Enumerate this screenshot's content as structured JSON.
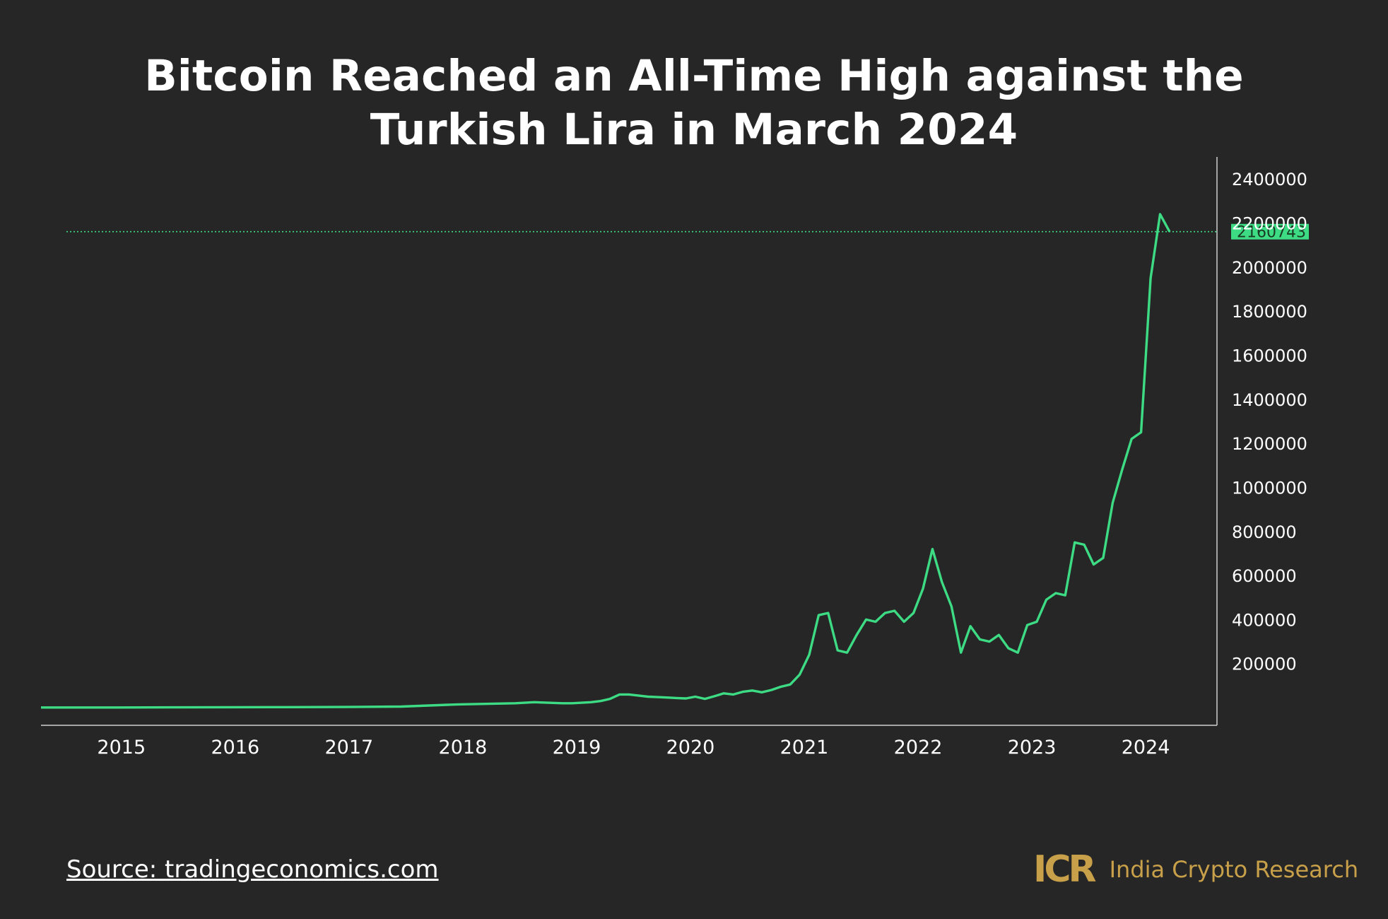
{
  "title_line1": "Bitcoin Reached an All-Time High against the",
  "title_line2": "Turkish Lira in March 2024",
  "source": "Source: tradingeconomics.com",
  "brand": {
    "logo_text": "ICR",
    "name": "India Crypto Research"
  },
  "colors": {
    "background": "#262626",
    "line": "#3ddc84",
    "text": "#ffffff",
    "brand": "#c8a049",
    "axis": "#cfcfcf"
  },
  "chart_data": {
    "type": "line",
    "title": "Bitcoin Reached an All-Time High against the Turkish Lira in March 2024",
    "xlabel": "",
    "ylabel": "",
    "x_ticks": [
      "2015",
      "2016",
      "2017",
      "2018",
      "2019",
      "2020",
      "2021",
      "2022",
      "2023",
      "2024"
    ],
    "y_ticks": [
      200000,
      400000,
      600000,
      800000,
      1000000,
      1200000,
      1400000,
      1600000,
      1800000,
      2000000,
      2200000,
      2400000
    ],
    "xlim": [
      "2014-05",
      "2024-09"
    ],
    "ylim": [
      -80000,
      2500000
    ],
    "y_axis_side": "right",
    "grid": false,
    "last_value": 2160743,
    "last_value_label": "2160743",
    "reference_line": {
      "value": 2160743,
      "style": "dotted"
    },
    "series": [
      {
        "points": [
          [
            "2014-05",
            1000
          ],
          [
            "2014-09",
            1000
          ],
          [
            "2015-01",
            1000
          ],
          [
            "2015-07",
            1500
          ],
          [
            "2016-01",
            2000
          ],
          [
            "2016-07",
            2500
          ],
          [
            "2017-01",
            3000
          ],
          [
            "2017-07",
            5000
          ],
          [
            "2018-01",
            15000
          ],
          [
            "2018-07",
            20000
          ],
          [
            "2018-09",
            25000
          ],
          [
            "2018-12",
            20000
          ],
          [
            "2019-01",
            20000
          ],
          [
            "2019-03",
            25000
          ],
          [
            "2019-04",
            30000
          ],
          [
            "2019-05",
            40000
          ],
          [
            "2019-06",
            60000
          ],
          [
            "2019-07",
            60000
          ],
          [
            "2019-08",
            55000
          ],
          [
            "2019-09",
            50000
          ],
          [
            "2019-10",
            48000
          ],
          [
            "2019-11",
            46000
          ],
          [
            "2019-12",
            44000
          ],
          [
            "2020-01",
            42000
          ],
          [
            "2020-02",
            50000
          ],
          [
            "2020-03",
            40000
          ],
          [
            "2020-04",
            52000
          ],
          [
            "2020-05",
            65000
          ],
          [
            "2020-06",
            60000
          ],
          [
            "2020-07",
            72000
          ],
          [
            "2020-08",
            78000
          ],
          [
            "2020-09",
            70000
          ],
          [
            "2020-10",
            80000
          ],
          [
            "2020-11",
            95000
          ],
          [
            "2020-12",
            105000
          ],
          [
            "2021-01",
            150000
          ],
          [
            "2021-02",
            240000
          ],
          [
            "2021-03",
            420000
          ],
          [
            "2021-04",
            430000
          ],
          [
            "2021-05",
            260000
          ],
          [
            "2021-06",
            250000
          ],
          [
            "2021-07",
            330000
          ],
          [
            "2021-08",
            400000
          ],
          [
            "2021-09",
            390000
          ],
          [
            "2021-10",
            430000
          ],
          [
            "2021-11",
            440000
          ],
          [
            "2021-12",
            390000
          ],
          [
            "2022-01",
            430000
          ],
          [
            "2022-02",
            540000
          ],
          [
            "2022-03",
            720000
          ],
          [
            "2022-04",
            570000
          ],
          [
            "2022-05",
            460000
          ],
          [
            "2022-06",
            250000
          ],
          [
            "2022-07",
            370000
          ],
          [
            "2022-08",
            310000
          ],
          [
            "2022-09",
            300000
          ],
          [
            "2022-10",
            330000
          ],
          [
            "2022-11",
            270000
          ],
          [
            "2022-12",
            250000
          ],
          [
            "2023-01",
            375000
          ],
          [
            "2023-02",
            390000
          ],
          [
            "2023-03",
            490000
          ],
          [
            "2023-04",
            520000
          ],
          [
            "2023-05",
            510000
          ],
          [
            "2023-06",
            750000
          ],
          [
            "2023-07",
            740000
          ],
          [
            "2023-08",
            650000
          ],
          [
            "2023-09",
            680000
          ],
          [
            "2023-10",
            930000
          ],
          [
            "2023-11",
            1080000
          ],
          [
            "2023-12",
            1220000
          ],
          [
            "2024-01",
            1250000
          ],
          [
            "2024-02",
            1950000
          ],
          [
            "2024-03",
            2240000
          ],
          [
            "2024-04",
            2160743
          ]
        ]
      }
    ]
  }
}
